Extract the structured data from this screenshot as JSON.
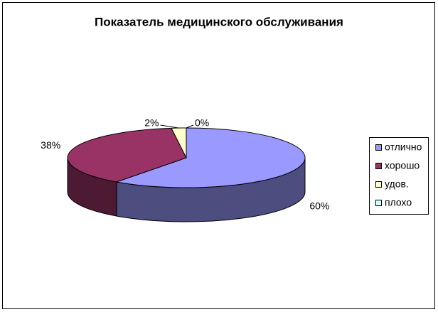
{
  "chart_data": {
    "type": "pie",
    "title": "Показатель медицинского обслуживания",
    "categories": [
      "отлично",
      "хорошо",
      "удов.",
      "плохо"
    ],
    "values": [
      60,
      38,
      2,
      0
    ],
    "value_labels": [
      "60%",
      "38%",
      "2%",
      "0%"
    ],
    "colors": [
      "#9999ff",
      "#993366",
      "#ffffcc",
      "#ccffff"
    ],
    "legend": "right"
  }
}
